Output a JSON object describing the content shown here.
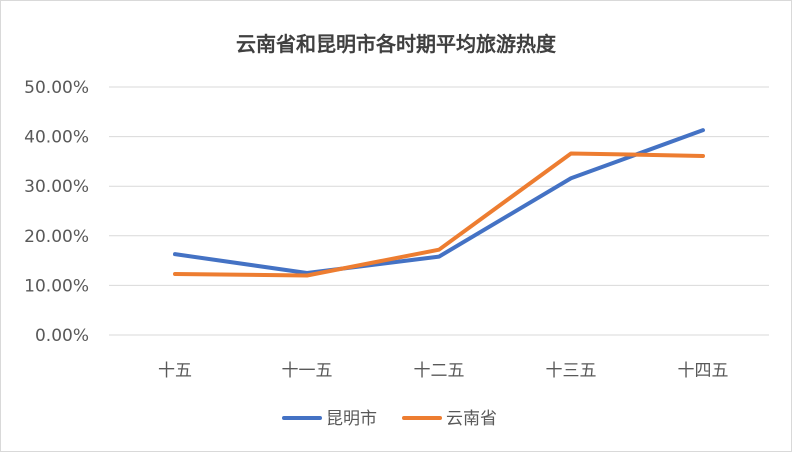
{
  "chart_data": {
    "type": "line",
    "title": "云南省和昆明市各时期平均旅游热度",
    "categories": [
      "十五",
      "十一五",
      "十二五",
      "十三五",
      "十四五"
    ],
    "series": [
      {
        "name": "昆明市",
        "color": "#4472C4",
        "values": [
          0.163,
          0.125,
          0.158,
          0.316,
          0.413
        ]
      },
      {
        "name": "云南省",
        "color": "#ED7D31",
        "values": [
          0.123,
          0.12,
          0.172,
          0.366,
          0.361
        ]
      }
    ],
    "ylim": [
      0,
      0.5
    ],
    "yticks": [
      "0.00%",
      "10.00%",
      "20.00%",
      "30.00%",
      "40.00%",
      "50.00%"
    ],
    "ytick_values": [
      0,
      0.1,
      0.2,
      0.3,
      0.4,
      0.5
    ],
    "xlabel": "",
    "ylabel": "",
    "grid": true,
    "legend_position": "bottom"
  }
}
